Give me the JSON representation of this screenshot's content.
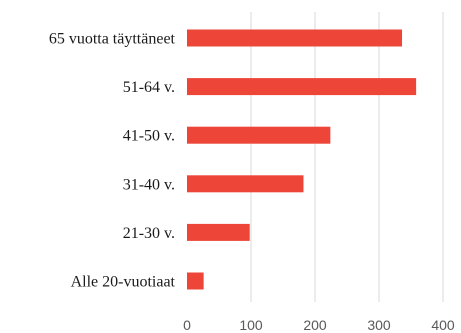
{
  "chart_data": {
    "type": "bar",
    "orientation": "horizontal",
    "title": "",
    "xlabel": "",
    "ylabel": "",
    "categories": [
      "65 vuotta täyttäneet",
      "51-64 v.",
      "41-50 v.",
      "31-40 v.",
      "21-30 v.",
      "Alle 20-vuotiaat"
    ],
    "values": [
      336,
      358,
      224,
      182,
      98,
      26
    ],
    "xlim": [
      0,
      400
    ],
    "xticks": [
      "0",
      "100",
      "200",
      "300",
      "400"
    ],
    "grid": true,
    "legend": "none",
    "bar_color": "#ee4539"
  }
}
